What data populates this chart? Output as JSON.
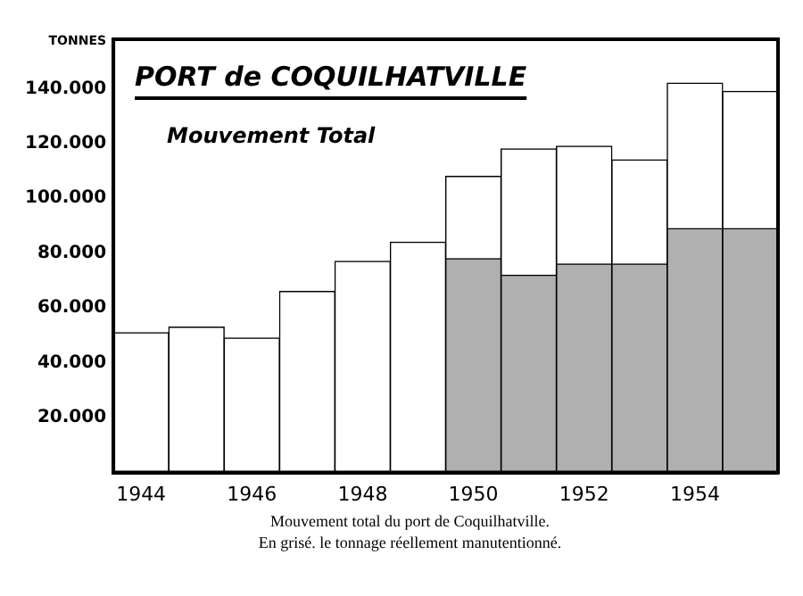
{
  "chart_data": {
    "type": "bar",
    "stacked": true,
    "title": "PORT de COQUILHATVILLE",
    "subtitle": "Mouvement Total",
    "ylabel": "TONNES",
    "categories": [
      "1944",
      null,
      "1946",
      null,
      "1948",
      null,
      "1950",
      null,
      "1952",
      null,
      "1954",
      null
    ],
    "series": [
      {
        "color": "#b0b0b0",
        "values": [
          null,
          null,
          null,
          null,
          null,
          null,
          78000,
          72000,
          76000,
          76000,
          89000,
          89000
        ]
      },
      {
        "color": "#ffffff",
        "values": [
          51000,
          53000,
          49000,
          66000,
          77000,
          84000,
          30000,
          46000,
          43000,
          38000,
          53000,
          50000
        ]
      }
    ],
    "ylim": [
      0,
      158000
    ],
    "yticks": [
      {
        "value": 20000,
        "label": "20.000"
      },
      {
        "value": 40000,
        "label": "40.000"
      },
      {
        "value": 60000,
        "label": "60.000"
      },
      {
        "value": 80000,
        "label": "80.000"
      },
      {
        "value": 100000,
        "label": "100.000"
      },
      {
        "value": 120000,
        "label": "120.000"
      },
      {
        "value": 140000,
        "label": "140.000"
      }
    ],
    "annotations": [
      "Mouvement total du port de Coquilhatville.",
      "En grisé. le tonnage réellement manutentionné."
    ]
  }
}
